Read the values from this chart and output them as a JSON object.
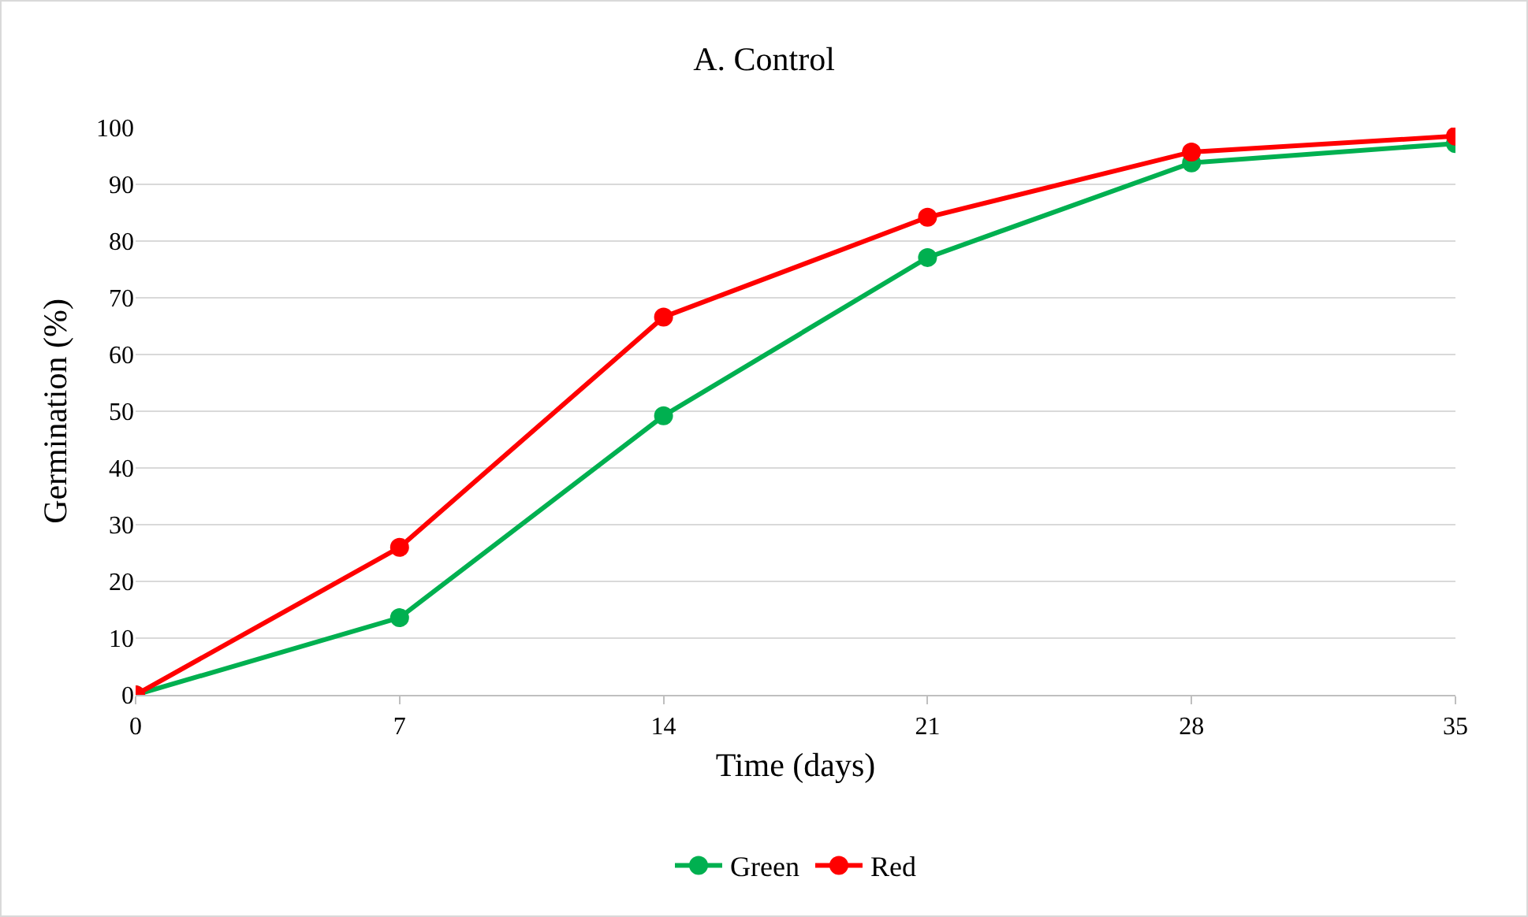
{
  "chart_data": {
    "type": "line",
    "title": "A. Control",
    "xlabel": "Time (days)",
    "ylabel": "Germination (%)",
    "x": [
      0,
      7,
      14,
      21,
      28,
      35
    ],
    "series": [
      {
        "name": "Green",
        "color": "#00b050",
        "values": [
          0,
          13.6,
          49.2,
          77.1,
          93.8,
          97.2
        ]
      },
      {
        "name": "Red",
        "color": "#ff0000",
        "values": [
          0,
          26,
          66.6,
          84.2,
          95.7,
          98.5
        ]
      }
    ],
    "xlim": [
      0,
      35
    ],
    "xticks": [
      0,
      7,
      14,
      21,
      28,
      35
    ],
    "ylim": [
      0,
      100
    ],
    "yticks": [
      0,
      10,
      20,
      30,
      40,
      50,
      60,
      70,
      80,
      90,
      100
    ],
    "grid": "y",
    "legend": "bottom",
    "marker": "circle",
    "line_style": "solid"
  }
}
